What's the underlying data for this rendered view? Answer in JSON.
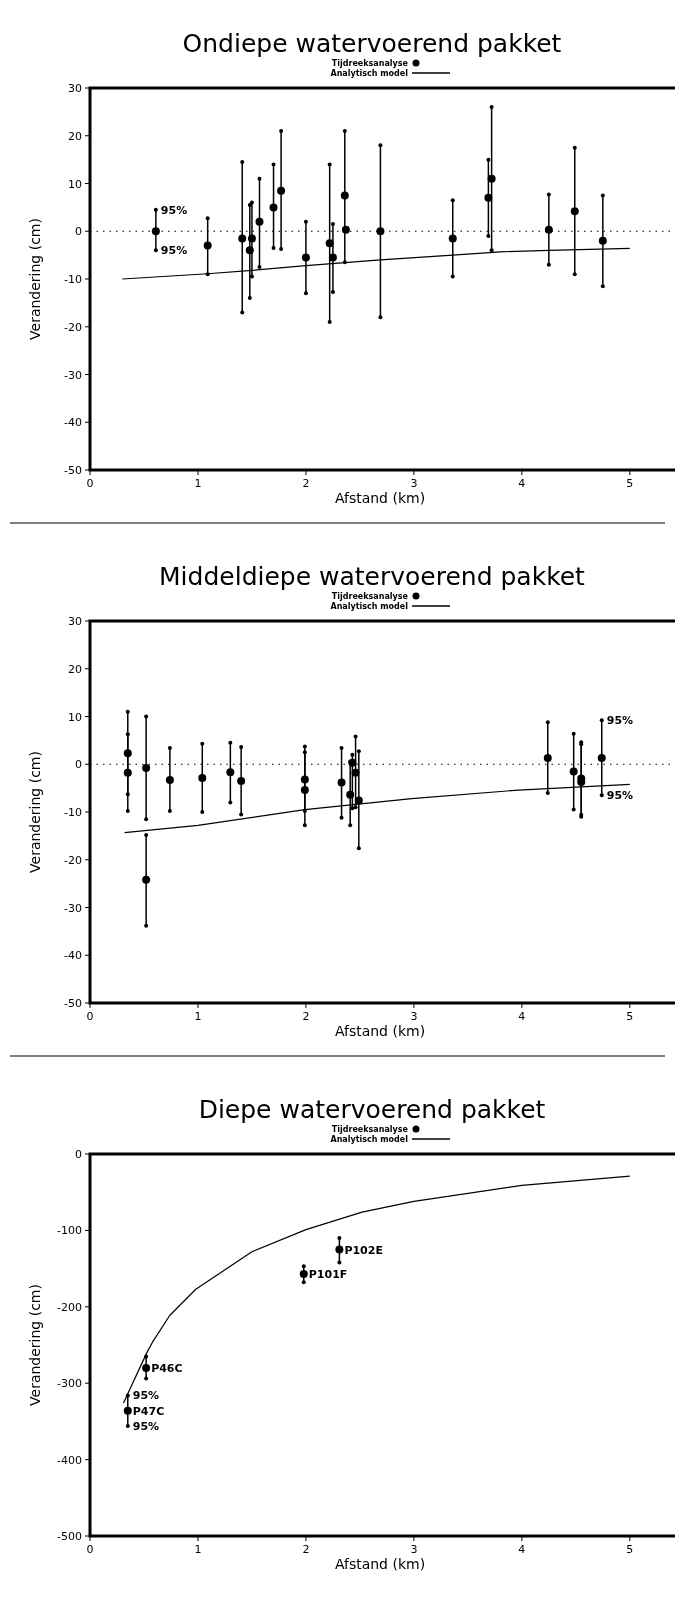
{
  "chart_data": [
    {
      "type": "scatter",
      "title": "Ondiepe watervoerend pakket",
      "xlabel": "Afstand (km)",
      "ylabel": "Verandering (cm)",
      "xlim": [
        0,
        5.4
      ],
      "ylim": [
        -50,
        30
      ],
      "xticks": [
        0,
        1,
        2,
        3,
        4,
        5
      ],
      "yticks": [
        -50,
        -40,
        -30,
        -20,
        -10,
        0,
        10,
        20,
        30
      ],
      "legend": "top",
      "marker": "circle",
      "grid": false,
      "ref_lines": [
        {
          "axis": "y",
          "value": 0,
          "line_style": "dotted",
          "color": "#000000"
        }
      ],
      "annotations": [
        {
          "text": "95%",
          "x": 0.61,
          "y": 4.5
        },
        {
          "text": "95%",
          "x": 0.61,
          "y": -4
        }
      ],
      "series": [
        {
          "name": "Tijdreeksanalyse",
          "color": "#000000",
          "x": [
            0.61,
            1.09,
            1.41,
            1.48,
            1.5,
            1.57,
            1.7,
            1.77,
            2.0,
            2.22,
            2.25,
            2.36,
            2.37,
            2.69,
            3.36,
            3.69,
            3.72,
            4.25,
            4.49,
            4.75
          ],
          "values": [
            0,
            -3,
            -1.5,
            -4,
            -1.5,
            2,
            5,
            8.5,
            -5.5,
            -2.5,
            -5.5,
            7.5,
            0.3,
            0,
            -1.5,
            7,
            11,
            0.3,
            4.2,
            -2
          ],
          "errors": [
            [
              -4,
              4.5
            ],
            [
              -9,
              2.7
            ],
            [
              -17,
              14.5
            ],
            [
              -14,
              5.5
            ],
            [
              -9.5,
              6
            ],
            [
              -7.5,
              11
            ],
            [
              -3.5,
              14
            ],
            [
              -3.7,
              21
            ],
            [
              -13,
              2
            ],
            [
              -19,
              14
            ],
            [
              -12.7,
              1.5
            ],
            [
              -6.5,
              21
            ],
            null,
            [
              -18,
              18
            ],
            [
              -9.5,
              6.5
            ],
            [
              -1,
              15
            ],
            [
              -4,
              26
            ],
            [
              -7,
              7.7
            ],
            [
              -9,
              17.5
            ],
            [
              -11.5,
              7.5
            ]
          ]
        },
        {
          "name": "Analytisch model",
          "type": "line",
          "color": "#000000",
          "line_style": "solid",
          "marker": "none",
          "x": [
            0.3,
            1.09,
            1.5,
            2.0,
            2.69,
            3.36,
            3.8,
            4.25,
            5.0
          ],
          "values": [
            -10,
            -8.9,
            -8.2,
            -7.2,
            -6,
            -5,
            -4.3,
            -4,
            -3.6
          ]
        }
      ]
    },
    {
      "type": "scatter",
      "title": "Middeldiepe watervoerend pakket",
      "xlabel": "Afstand (km)",
      "ylabel": "Verandering (cm)",
      "xlim": [
        0,
        5.4
      ],
      "ylim": [
        -50,
        30
      ],
      "xticks": [
        0,
        1,
        2,
        3,
        4,
        5
      ],
      "yticks": [
        -50,
        -40,
        -30,
        -20,
        -10,
        0,
        10,
        20,
        30
      ],
      "legend": "top",
      "marker": "circle",
      "grid": false,
      "ref_lines": [
        {
          "axis": "y",
          "value": 0,
          "line_style": "dotted",
          "color": "#000000"
        }
      ],
      "annotations": [
        {
          "text": "95%",
          "x": 4.74,
          "y": 9.2
        },
        {
          "text": "95%",
          "x": 4.74,
          "y": -6.5
        }
      ],
      "series": [
        {
          "name": "Tijdreeksanalyse",
          "color": "#000000",
          "x": [
            0.35,
            0.35,
            0.52,
            0.52,
            0.74,
            1.04,
            1.3,
            1.4,
            1.99,
            1.99,
            2.33,
            2.41,
            2.43,
            2.46,
            2.49,
            4.24,
            4.48,
            4.55,
            4.55,
            4.74
          ],
          "values": [
            2.3,
            -1.8,
            -0.8,
            -24.2,
            -3.3,
            -2.9,
            -1.7,
            -3.5,
            -3.2,
            -5.4,
            -3.8,
            -6.4,
            0.3,
            -1.8,
            -7.6,
            1.3,
            -1.5,
            -3,
            -3.7,
            1.3
          ],
          "errors": [
            [
              -6.3,
              11
            ],
            [
              -9.8,
              6.3
            ],
            [
              -11.5,
              10
            ],
            [
              -33.8,
              -14.8
            ],
            [
              -9.8,
              3.4
            ],
            [
              -10,
              4.3
            ],
            [
              -8,
              4.5
            ],
            [
              -10.5,
              3.6
            ],
            [
              -9.8,
              3.7
            ],
            [
              -12.8,
              2.5
            ],
            [
              -11.2,
              3.4
            ],
            [
              -12.8,
              0.5
            ],
            [
              -9.2,
              2
            ],
            [
              -9,
              5.8
            ],
            [
              -17.6,
              2.7
            ],
            [
              -6,
              8.8
            ],
            [
              -9.5,
              6.4
            ],
            [
              -10.6,
              4.6
            ],
            [
              -11,
              4.2
            ],
            [
              -6.5,
              9.2
            ]
          ]
        },
        {
          "name": "Analytisch model",
          "type": "line",
          "color": "#000000",
          "line_style": "solid",
          "marker": "none",
          "x": [
            0.32,
            1.0,
            1.99,
            2.98,
            3.97,
            5.0
          ],
          "values": [
            -14.3,
            -12.8,
            -9.5,
            -7.2,
            -5.4,
            -4.2
          ]
        }
      ]
    },
    {
      "type": "scatter",
      "title": "Diepe watervoerend pakket",
      "xlabel": "Afstand (km)",
      "ylabel": "Verandering (cm)",
      "xlim": [
        0,
        5.4
      ],
      "ylim": [
        -500,
        0
      ],
      "xticks": [
        0,
        1,
        2,
        3,
        4,
        5
      ],
      "yticks": [
        -500,
        -400,
        -300,
        -200,
        -100,
        0
      ],
      "legend": "top",
      "marker": "circle",
      "grid": false,
      "annotations": [
        {
          "text": "P102E",
          "x": 2.31,
          "y": -125
        },
        {
          "text": "P101F",
          "x": 1.98,
          "y": -157
        },
        {
          "text": "P46C",
          "x": 0.52,
          "y": -280
        },
        {
          "text": "P47C",
          "x": 0.35,
          "y": -336
        },
        {
          "text": "95%",
          "x": 0.35,
          "y": -316
        },
        {
          "text": "95%",
          "x": 0.35,
          "y": -356
        }
      ],
      "series": [
        {
          "name": "Tijdreeksanalyse",
          "color": "#000000",
          "x": [
            2.31,
            1.98,
            0.52,
            0.35
          ],
          "values": [
            -125,
            -157,
            -280,
            -336
          ],
          "errors": [
            [
              -142,
              -110
            ],
            [
              -168,
              -147
            ],
            [
              -294,
              -265
            ],
            [
              -356,
              -316
            ]
          ]
        },
        {
          "name": "Analytisch model",
          "type": "line",
          "color": "#000000",
          "line_style": "solid",
          "marker": "none",
          "x": [
            0.31,
            0.53,
            0.58,
            0.74,
            0.98,
            1.5,
            2.0,
            2.52,
            3.0,
            4.0,
            5.0
          ],
          "values": [
            -326,
            -259,
            -246,
            -211,
            -177,
            -128,
            -99,
            -76,
            -62,
            -41,
            -29
          ]
        }
      ]
    }
  ]
}
